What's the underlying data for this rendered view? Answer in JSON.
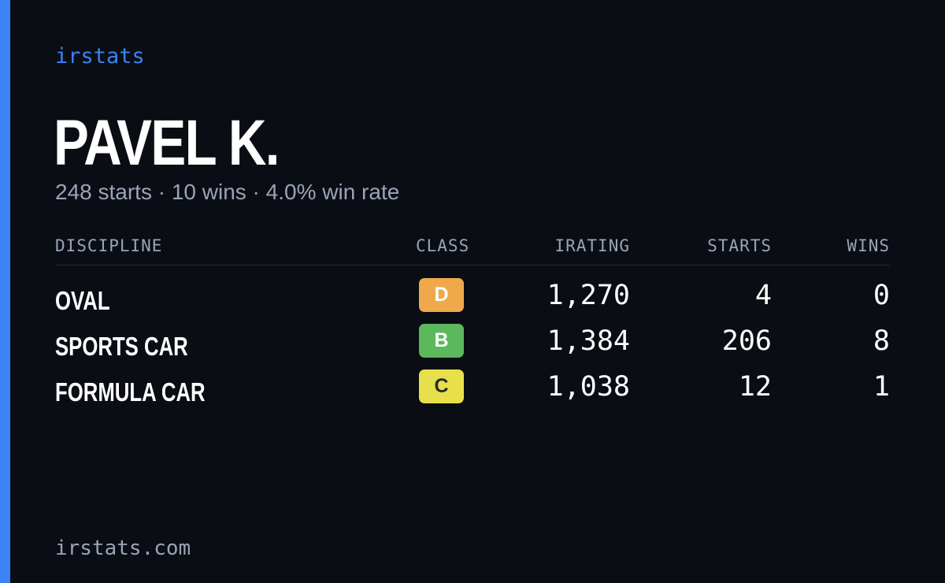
{
  "brand": {
    "label": "irstats"
  },
  "player": {
    "name": "PAVEL K.",
    "summary": "248 starts · 10 wins · 4.0% win rate"
  },
  "table": {
    "headers": {
      "discipline": "DISCIPLINE",
      "class": "CLASS",
      "irating": "IRATING",
      "starts": "STARTS",
      "wins": "WINS"
    },
    "rows": [
      {
        "discipline": "OVAL",
        "class": "D",
        "class_color": "#f0a94a",
        "irating": "1,270",
        "starts": "4",
        "wins": "0"
      },
      {
        "discipline": "SPORTS CAR",
        "class": "B",
        "class_color": "#5cb85c",
        "irating": "1,384",
        "starts": "206",
        "wins": "8"
      },
      {
        "discipline": "FORMULA CAR",
        "class": "C",
        "class_color": "#e8e04a",
        "irating": "1,038",
        "starts": "12",
        "wins": "1"
      }
    ]
  },
  "footer": {
    "domain": "irstats.com"
  },
  "colors": {
    "background": "#0a0d14",
    "accent": "#3b82f6",
    "muted_text": "#9aa4b5"
  }
}
